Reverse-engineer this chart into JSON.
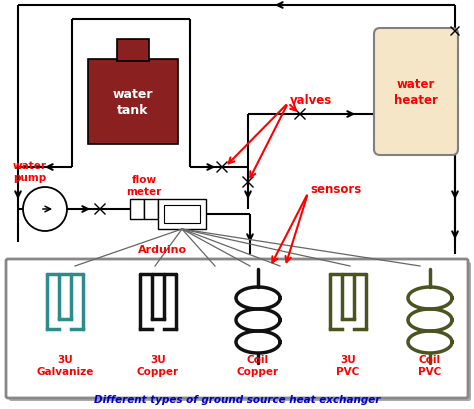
{
  "title": "Different types of ground source heat exchanger",
  "title_color": "#0000CC",
  "bg_color": "#ffffff",
  "water_tank_color": "#8B2020",
  "water_heater_color": "#F5E6C8",
  "pipe_color": "#000000",
  "red_color": "#FF0000",
  "galvanize_color": "#2E8B8B",
  "copper_color": "#111111",
  "pvc_color": "#4B5320",
  "labels": {
    "water_tank": "water\ntank",
    "water_heater": "water\nheater",
    "water_pump": "water\npump",
    "flow_meter": "flow\nmeter",
    "arduino": "Arduino",
    "valves": "valves",
    "sensors": "sensors",
    "galvanize": "3U\nGalvanize",
    "copper_3u": "3U\nCopper",
    "coil_copper": "Coil\nCopper",
    "pvc_3u": "3U\nPVC",
    "coil_pvc": "Coil\nPVC"
  },
  "pipe_lw": 1.5,
  "hx_lw": 2.5
}
